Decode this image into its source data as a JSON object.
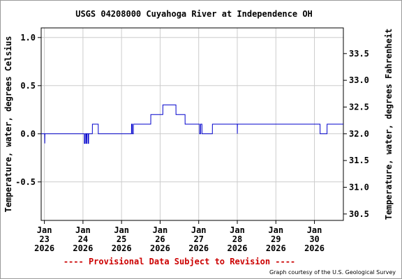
{
  "chart_data": {
    "type": "line",
    "title": "USGS 04208000 Cuyahoga River at Independence OH",
    "ylabel_left": "Temperature, water, degrees Celsius",
    "ylabel_right": "Temperature, water, degrees Fahrenheit",
    "ylim_celsius": [
      -0.9,
      1.1
    ],
    "yticks_celsius": [
      "1.0",
      "0.5",
      "0.0",
      "-0.5"
    ],
    "yticks_fahrenheit": [
      "33.5",
      "33.0",
      "32.5",
      "32.0",
      "31.5",
      "31.0",
      "30.5"
    ],
    "x_range_days": [
      "2026-01-22T22:00",
      "2026-01-30T18:00"
    ],
    "x_ticks": [
      {
        "date": "2026-01-23",
        "month": "Jan",
        "day": "23",
        "year": "2026"
      },
      {
        "date": "2026-01-24",
        "month": "Jan",
        "day": "24",
        "year": "2026"
      },
      {
        "date": "2026-01-25",
        "month": "Jan",
        "day": "25",
        "year": "2026"
      },
      {
        "date": "2026-01-26",
        "month": "Jan",
        "day": "26",
        "year": "2026"
      },
      {
        "date": "2026-01-27",
        "month": "Jan",
        "day": "27",
        "year": "2026"
      },
      {
        "date": "2026-01-28",
        "month": "Jan",
        "day": "28",
        "year": "2026"
      },
      {
        "date": "2026-01-29",
        "month": "Jan",
        "day": "29",
        "year": "2026"
      },
      {
        "date": "2026-01-30",
        "month": "Jan",
        "day": "30",
        "year": "2026"
      }
    ],
    "grid": true,
    "series": [
      {
        "color": "#0000cc",
        "points": [
          [
            "2026-01-22T22:00",
            0.0
          ],
          [
            "2026-01-23T00:10",
            0.0
          ],
          [
            "2026-01-23T00:14",
            -0.1
          ],
          [
            "2026-01-23T00:18",
            0.0
          ],
          [
            "2026-01-24T00:50",
            0.0
          ],
          [
            "2026-01-24T00:52",
            -0.1
          ],
          [
            "2026-01-24T01:20",
            -0.1
          ],
          [
            "2026-01-24T01:25",
            0.0
          ],
          [
            "2026-01-24T02:00",
            0.0
          ],
          [
            "2026-01-24T02:02",
            -0.1
          ],
          [
            "2026-01-24T02:20",
            -0.1
          ],
          [
            "2026-01-24T02:25",
            0.0
          ],
          [
            "2026-01-24T03:10",
            0.0
          ],
          [
            "2026-01-24T03:12",
            -0.1
          ],
          [
            "2026-01-24T03:30",
            -0.1
          ],
          [
            "2026-01-24T03:32",
            0.0
          ],
          [
            "2026-01-24T05:50",
            0.0
          ],
          [
            "2026-01-24T05:52",
            0.1
          ],
          [
            "2026-01-24T09:30",
            0.1
          ],
          [
            "2026-01-24T09:32",
            0.0
          ],
          [
            "2026-01-25T06:10",
            0.0
          ],
          [
            "2026-01-25T06:12",
            0.1
          ],
          [
            "2026-01-25T06:40",
            0.1
          ],
          [
            "2026-01-25T06:42",
            0.0
          ],
          [
            "2026-01-25T07:20",
            0.0
          ],
          [
            "2026-01-25T07:22",
            0.1
          ],
          [
            "2026-01-25T18:10",
            0.1
          ],
          [
            "2026-01-25T18:12",
            0.2
          ],
          [
            "2026-01-26T01:40",
            0.2
          ],
          [
            "2026-01-26T01:42",
            0.3
          ],
          [
            "2026-01-26T09:50",
            0.3
          ],
          [
            "2026-01-26T09:52",
            0.2
          ],
          [
            "2026-01-26T15:30",
            0.2
          ],
          [
            "2026-01-26T15:32",
            0.1
          ],
          [
            "2026-01-27T00:30",
            0.1
          ],
          [
            "2026-01-27T00:32",
            0.0
          ],
          [
            "2026-01-27T01:10",
            0.0
          ],
          [
            "2026-01-27T01:12",
            0.1
          ],
          [
            "2026-01-27T02:00",
            0.1
          ],
          [
            "2026-01-27T02:02",
            0.0
          ],
          [
            "2026-01-27T08:30",
            0.0
          ],
          [
            "2026-01-27T08:32",
            0.1
          ],
          [
            "2026-01-28T00:00",
            0.1
          ],
          [
            "2026-01-28T00:02",
            0.0
          ],
          [
            "2026-01-28T00:06",
            0.1
          ],
          [
            "2026-01-30T03:30",
            0.1
          ],
          [
            "2026-01-30T03:32",
            0.0
          ],
          [
            "2026-01-30T07:50",
            0.0
          ],
          [
            "2026-01-30T07:52",
            0.1
          ],
          [
            "2026-01-30T18:00",
            0.1
          ]
        ]
      }
    ]
  },
  "footer": {
    "provisional": "---- Provisional Data Subject to Revision ----",
    "credit": "Graph courtesy of the U.S. Geological Survey"
  },
  "colors": {
    "line": "#0000cc",
    "grid": "#cccccc",
    "provisional": "#cc0000",
    "text": "#000000"
  }
}
